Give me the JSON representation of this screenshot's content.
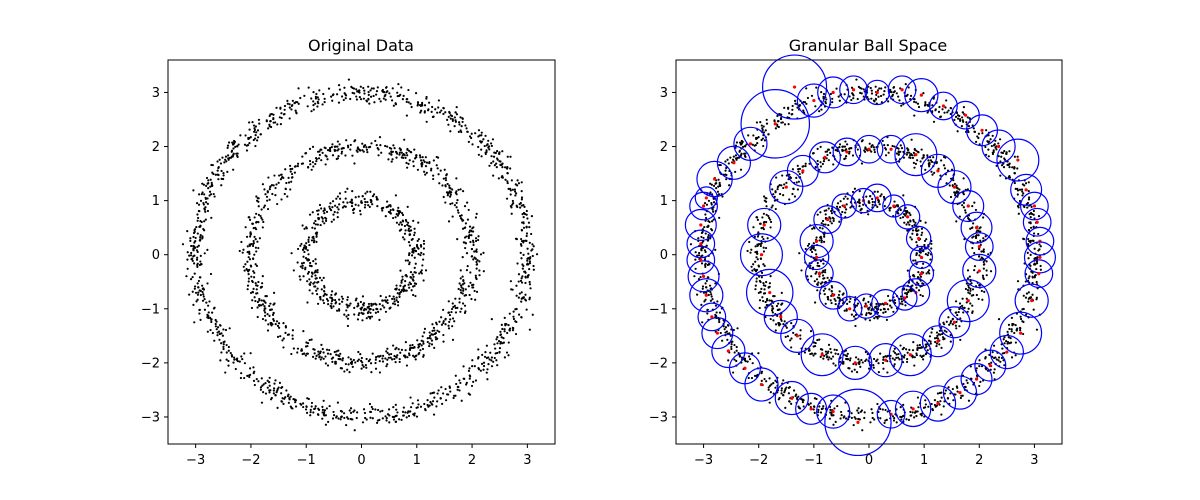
{
  "chart_data": [
    {
      "type": "scatter",
      "title": "Original Data",
      "xlabel": "",
      "ylabel": "",
      "xlim": [
        -3.5,
        3.5
      ],
      "ylim": [
        -3.5,
        3.6
      ],
      "xticks": [
        -3,
        -2,
        -1,
        0,
        1,
        2,
        3
      ],
      "yticks": [
        -3,
        -2,
        -1,
        0,
        1,
        2,
        3
      ],
      "grid": false,
      "point_color": "#000000",
      "rings": [
        {
          "radius": 1.0,
          "noise": 0.1,
          "count": 500
        },
        {
          "radius": 2.0,
          "noise": 0.1,
          "count": 800
        },
        {
          "radius": 3.0,
          "noise": 0.1,
          "count": 1100
        }
      ]
    },
    {
      "type": "scatter",
      "title": "Granular Ball Space",
      "xlabel": "",
      "ylabel": "",
      "xlim": [
        -3.5,
        3.5
      ],
      "ylim": [
        -3.5,
        3.6
      ],
      "xticks": [
        -3,
        -2,
        -1,
        0,
        1,
        2,
        3
      ],
      "yticks": [
        -3,
        -2,
        -1,
        0,
        1,
        2,
        3
      ],
      "grid": false,
      "point_color": "#000000",
      "center_color": "#ff0000",
      "ball_color": "#0000ff",
      "rings": [
        {
          "radius": 1.0,
          "noise": 0.1,
          "count": 500
        },
        {
          "radius": 2.0,
          "noise": 0.1,
          "count": 800
        },
        {
          "radius": 3.0,
          "noise": 0.1,
          "count": 1100
        }
      ],
      "balls": [
        {
          "x": -1.35,
          "y": 3.1,
          "r": 0.58
        },
        {
          "x": -1.7,
          "y": 2.42,
          "r": 0.62
        },
        {
          "x": -1.0,
          "y": 2.85,
          "r": 0.3
        },
        {
          "x": -0.65,
          "y": 3.0,
          "r": 0.28
        },
        {
          "x": -0.28,
          "y": 3.05,
          "r": 0.25
        },
        {
          "x": 0.15,
          "y": 3.0,
          "r": 0.22
        },
        {
          "x": 0.6,
          "y": 3.05,
          "r": 0.25
        },
        {
          "x": 0.95,
          "y": 2.95,
          "r": 0.3
        },
        {
          "x": 1.35,
          "y": 2.75,
          "r": 0.25
        },
        {
          "x": 1.75,
          "y": 2.58,
          "r": 0.25
        },
        {
          "x": 2.05,
          "y": 2.3,
          "r": 0.28
        },
        {
          "x": 2.35,
          "y": 2.0,
          "r": 0.3
        },
        {
          "x": 2.7,
          "y": 1.75,
          "r": 0.38
        },
        {
          "x": 2.85,
          "y": 1.2,
          "r": 0.28
        },
        {
          "x": 3.0,
          "y": 0.9,
          "r": 0.25
        },
        {
          "x": 3.05,
          "y": 0.6,
          "r": 0.25
        },
        {
          "x": 3.1,
          "y": 0.25,
          "r": 0.25
        },
        {
          "x": 3.1,
          "y": -0.05,
          "r": 0.28
        },
        {
          "x": 3.08,
          "y": -0.35,
          "r": 0.25
        },
        {
          "x": 2.95,
          "y": -0.85,
          "r": 0.3
        },
        {
          "x": 2.75,
          "y": -1.45,
          "r": 0.38
        },
        {
          "x": 2.5,
          "y": -1.8,
          "r": 0.3
        },
        {
          "x": 2.2,
          "y": -2.05,
          "r": 0.28
        },
        {
          "x": 1.95,
          "y": -2.3,
          "r": 0.28
        },
        {
          "x": 1.65,
          "y": -2.55,
          "r": 0.3
        },
        {
          "x": 1.25,
          "y": -2.75,
          "r": 0.32
        },
        {
          "x": 0.8,
          "y": -2.85,
          "r": 0.32
        },
        {
          "x": 0.4,
          "y": -2.95,
          "r": 0.25
        },
        {
          "x": -0.2,
          "y": -3.1,
          "r": 0.6
        },
        {
          "x": -0.65,
          "y": -2.9,
          "r": 0.3
        },
        {
          "x": -1.05,
          "y": -2.85,
          "r": 0.28
        },
        {
          "x": -1.4,
          "y": -2.65,
          "r": 0.3
        },
        {
          "x": -1.95,
          "y": -2.4,
          "r": 0.3
        },
        {
          "x": -2.25,
          "y": -2.1,
          "r": 0.28
        },
        {
          "x": -2.55,
          "y": -1.78,
          "r": 0.3
        },
        {
          "x": -2.75,
          "y": -1.45,
          "r": 0.28
        },
        {
          "x": -2.85,
          "y": -1.15,
          "r": 0.25
        },
        {
          "x": -2.95,
          "y": -0.75,
          "r": 0.3
        },
        {
          "x": -3.0,
          "y": -0.4,
          "r": 0.28
        },
        {
          "x": -3.05,
          "y": -0.1,
          "r": 0.25
        },
        {
          "x": -3.05,
          "y": 0.2,
          "r": 0.25
        },
        {
          "x": -3.05,
          "y": 0.55,
          "r": 0.28
        },
        {
          "x": -3.0,
          "y": 0.9,
          "r": 0.25
        },
        {
          "x": -2.95,
          "y": 1.05,
          "r": 0.2
        },
        {
          "x": -2.8,
          "y": 1.4,
          "r": 0.32
        },
        {
          "x": -2.45,
          "y": 1.7,
          "r": 0.3
        },
        {
          "x": -2.15,
          "y": 2.05,
          "r": 0.3
        },
        {
          "x": -1.5,
          "y": 1.25,
          "r": 0.3
        },
        {
          "x": -1.2,
          "y": 1.55,
          "r": 0.28
        },
        {
          "x": -0.8,
          "y": 1.8,
          "r": 0.28
        },
        {
          "x": -0.4,
          "y": 1.9,
          "r": 0.25
        },
        {
          "x": 0.0,
          "y": 1.95,
          "r": 0.25
        },
        {
          "x": 0.4,
          "y": 1.95,
          "r": 0.25
        },
        {
          "x": 0.85,
          "y": 1.85,
          "r": 0.38
        },
        {
          "x": 1.25,
          "y": 1.55,
          "r": 0.3
        },
        {
          "x": 1.55,
          "y": 1.25,
          "r": 0.3
        },
        {
          "x": 1.8,
          "y": 0.9,
          "r": 0.28
        },
        {
          "x": 1.95,
          "y": 0.5,
          "r": 0.28
        },
        {
          "x": 2.0,
          "y": 0.15,
          "r": 0.25
        },
        {
          "x": 2.0,
          "y": -0.3,
          "r": 0.3
        },
        {
          "x": 1.8,
          "y": -0.85,
          "r": 0.38
        },
        {
          "x": 1.55,
          "y": -1.25,
          "r": 0.28
        },
        {
          "x": 1.25,
          "y": -1.6,
          "r": 0.28
        },
        {
          "x": 0.75,
          "y": -1.85,
          "r": 0.38
        },
        {
          "x": 0.3,
          "y": -1.95,
          "r": 0.3
        },
        {
          "x": -0.25,
          "y": -2.0,
          "r": 0.3
        },
        {
          "x": -0.85,
          "y": -1.85,
          "r": 0.38
        },
        {
          "x": -1.3,
          "y": -1.5,
          "r": 0.3
        },
        {
          "x": -1.6,
          "y": -1.15,
          "r": 0.3
        },
        {
          "x": -1.8,
          "y": -0.7,
          "r": 0.42
        },
        {
          "x": -1.95,
          "y": 0.0,
          "r": 0.38
        },
        {
          "x": -1.9,
          "y": 0.55,
          "r": 0.3
        },
        {
          "x": -0.95,
          "y": 0.25,
          "r": 0.3
        },
        {
          "x": -0.75,
          "y": 0.65,
          "r": 0.25
        },
        {
          "x": -0.45,
          "y": 0.9,
          "r": 0.22
        },
        {
          "x": -0.1,
          "y": 1.0,
          "r": 0.22
        },
        {
          "x": 0.15,
          "y": 1.05,
          "r": 0.25
        },
        {
          "x": 0.45,
          "y": 0.9,
          "r": 0.2
        },
        {
          "x": 0.7,
          "y": 0.7,
          "r": 0.22
        },
        {
          "x": 0.9,
          "y": 0.3,
          "r": 0.22
        },
        {
          "x": 0.95,
          "y": -0.05,
          "r": 0.2
        },
        {
          "x": 0.95,
          "y": -0.35,
          "r": 0.22
        },
        {
          "x": 0.85,
          "y": -0.7,
          "r": 0.25
        },
        {
          "x": 0.65,
          "y": -0.8,
          "r": 0.22
        },
        {
          "x": 0.3,
          "y": -0.9,
          "r": 0.25
        },
        {
          "x": -0.05,
          "y": -0.95,
          "r": 0.22
        },
        {
          "x": -0.35,
          "y": -1.0,
          "r": 0.22
        },
        {
          "x": -0.65,
          "y": -0.75,
          "r": 0.25
        },
        {
          "x": -0.9,
          "y": -0.35,
          "r": 0.25
        },
        {
          "x": -0.95,
          "y": -0.05,
          "r": 0.22
        }
      ]
    }
  ]
}
